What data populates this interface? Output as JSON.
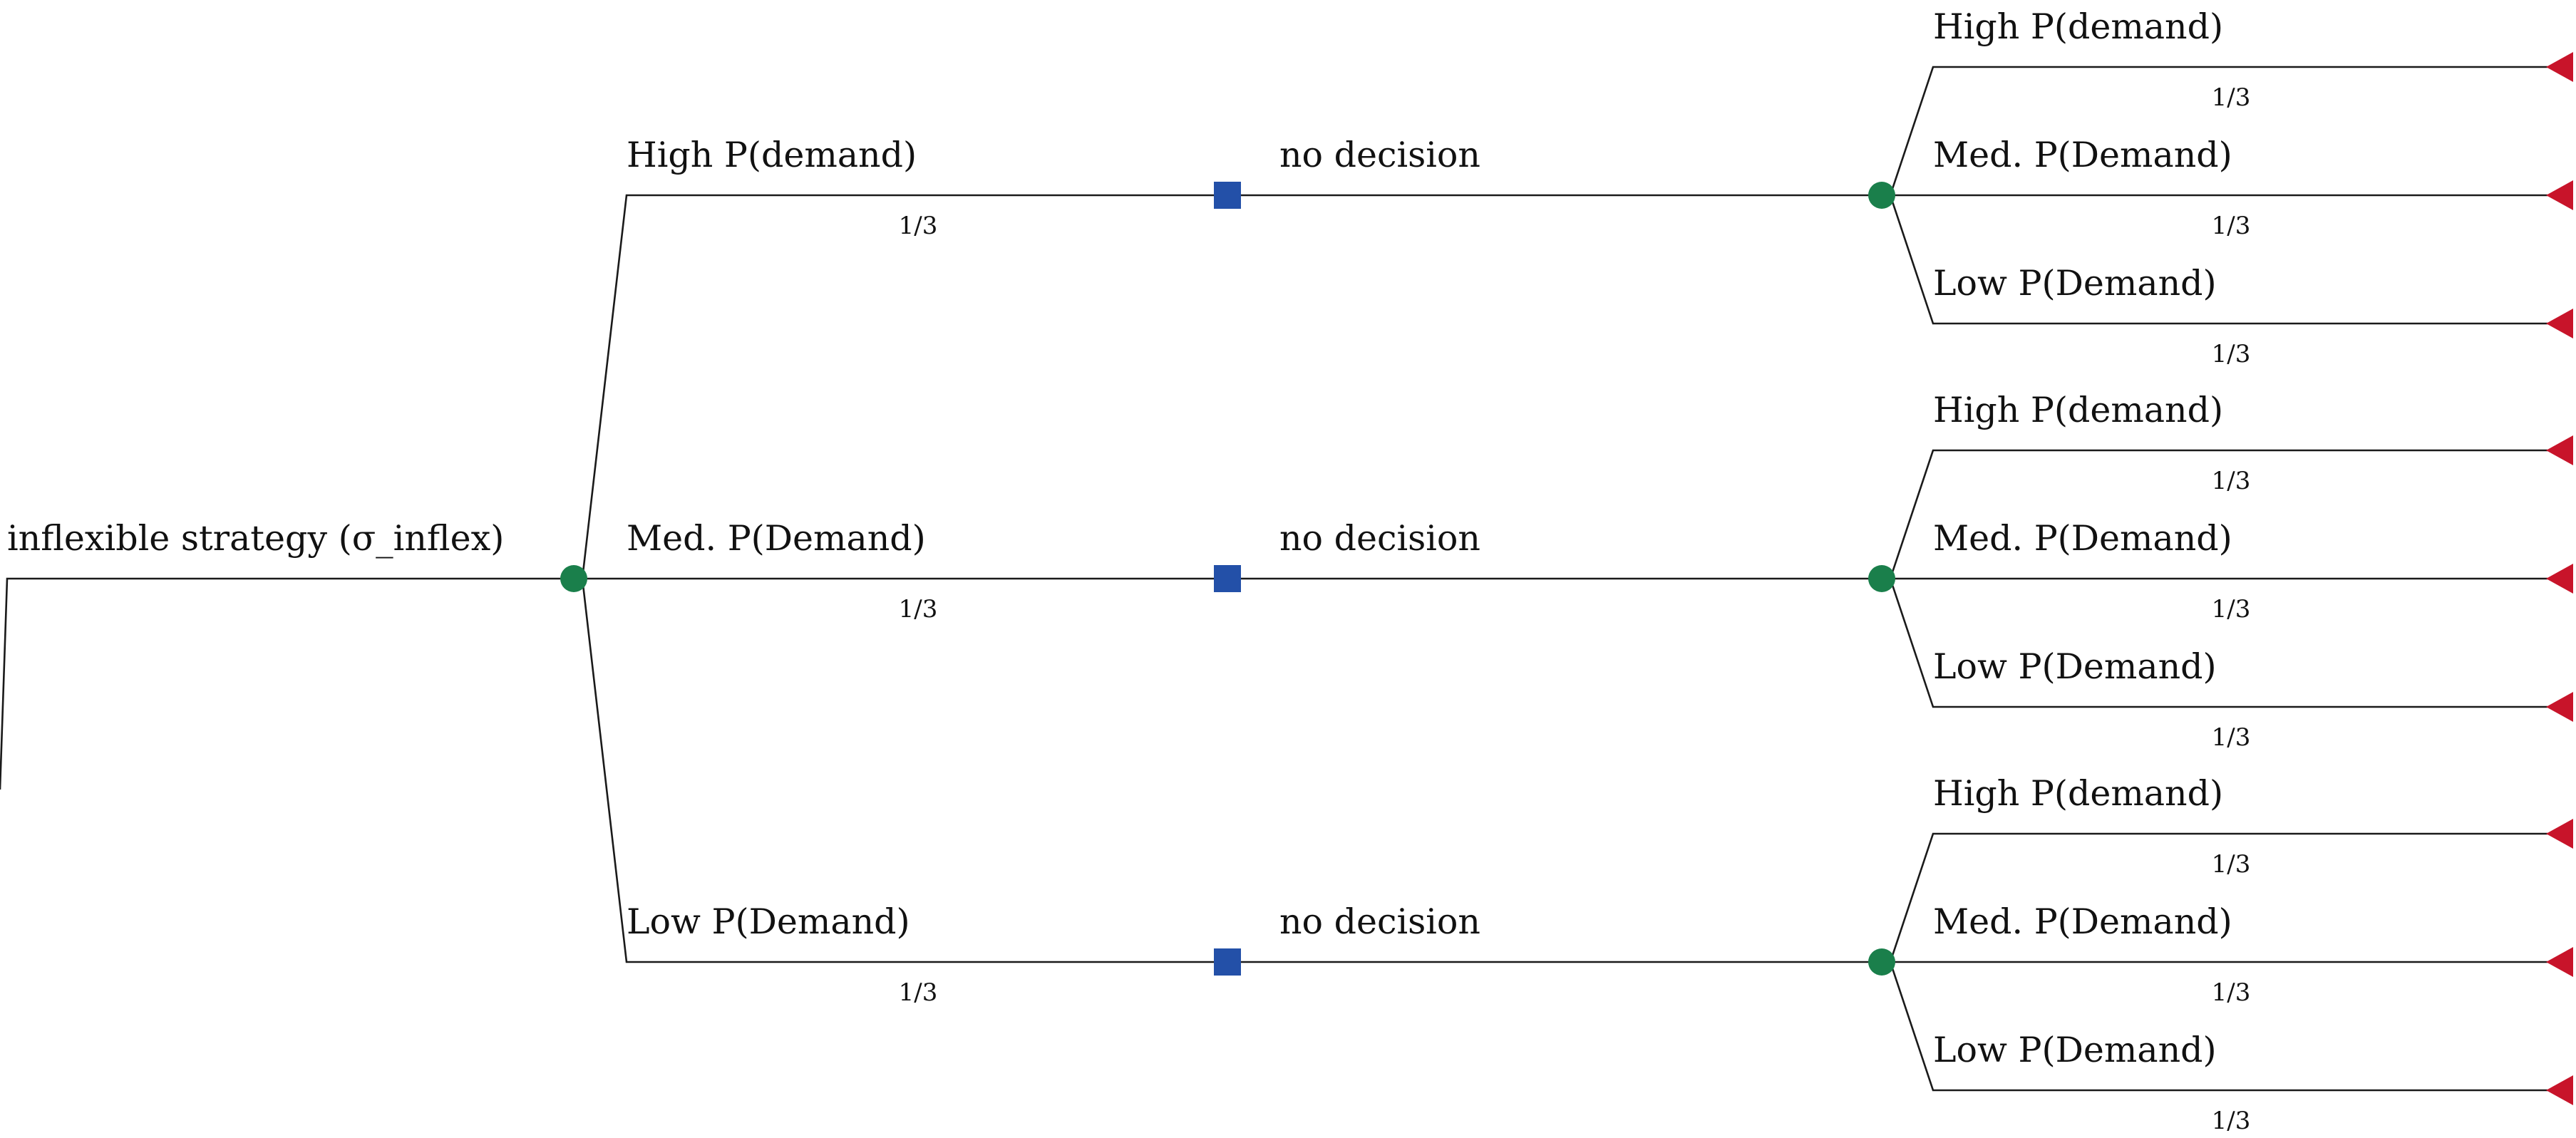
{
  "colors": {
    "edge": "#1a1a1a",
    "chance": "#1a7f4b",
    "decision": "#2350a8",
    "terminal": "#c8142a"
  },
  "root": {
    "label": "inflexible strategy (σ_inflex)",
    "node_type": "chance",
    "branches": [
      {
        "label": "High P(demand)",
        "probability": "1/3",
        "node_type": "decision",
        "decision": {
          "label": "no decision",
          "node_type": "chance",
          "outcomes": [
            {
              "label": "High P(demand)",
              "probability": "1/3",
              "node_type": "terminal"
            },
            {
              "label": "Med. P(Demand)",
              "probability": "1/3",
              "node_type": "terminal"
            },
            {
              "label": "Low P(Demand)",
              "probability": "1/3",
              "node_type": "terminal"
            }
          ]
        }
      },
      {
        "label": "Med. P(Demand)",
        "probability": "1/3",
        "node_type": "decision",
        "decision": {
          "label": "no decision",
          "node_type": "chance",
          "outcomes": [
            {
              "label": "High P(demand)",
              "probability": "1/3",
              "node_type": "terminal"
            },
            {
              "label": "Med. P(Demand)",
              "probability": "1/3",
              "node_type": "terminal"
            },
            {
              "label": "Low P(Demand)",
              "probability": "1/3",
              "node_type": "terminal"
            }
          ]
        }
      },
      {
        "label": "Low P(Demand)",
        "probability": "1/3",
        "node_type": "decision",
        "decision": {
          "label": "no decision",
          "node_type": "chance",
          "outcomes": [
            {
              "label": "High P(demand)",
              "probability": "1/3",
              "node_type": "terminal"
            },
            {
              "label": "Med. P(Demand)",
              "probability": "1/3",
              "node_type": "terminal"
            },
            {
              "label": "Low P(Demand)",
              "probability": "1/3",
              "node_type": "terminal"
            }
          ]
        }
      }
    ]
  }
}
